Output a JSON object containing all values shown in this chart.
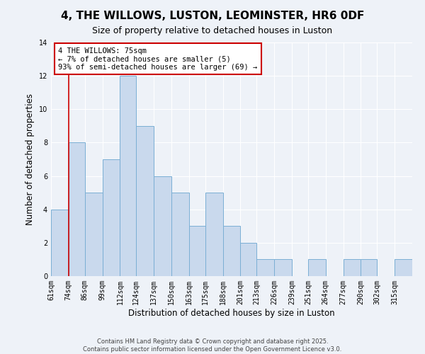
{
  "title": "4, THE WILLOWS, LUSTON, LEOMINSTER, HR6 0DF",
  "subtitle": "Size of property relative to detached houses in Luston",
  "xlabel": "Distribution of detached houses by size in Luston",
  "ylabel": "Number of detached properties",
  "bin_labels": [
    "61sqm",
    "74sqm",
    "86sqm",
    "99sqm",
    "112sqm",
    "124sqm",
    "137sqm",
    "150sqm",
    "163sqm",
    "175sqm",
    "188sqm",
    "201sqm",
    "213sqm",
    "226sqm",
    "239sqm",
    "251sqm",
    "264sqm",
    "277sqm",
    "290sqm",
    "302sqm",
    "315sqm"
  ],
  "bar_heights": [
    4,
    8,
    5,
    7,
    12,
    9,
    6,
    5,
    3,
    5,
    3,
    2,
    1,
    1,
    0,
    1,
    0,
    1,
    1,
    0,
    1
  ],
  "bin_edges": [
    61,
    74,
    86,
    99,
    112,
    124,
    137,
    150,
    163,
    175,
    188,
    201,
    213,
    226,
    239,
    251,
    264,
    277,
    290,
    302,
    315,
    328
  ],
  "bar_color": "#c9d9ed",
  "bar_edge_color": "#7aafd4",
  "vline_x": 74,
  "vline_color": "#cc0000",
  "annotation_title": "4 THE WILLOWS: 75sqm",
  "annotation_line1": "← 7% of detached houses are smaller (5)",
  "annotation_line2": "93% of semi-detached houses are larger (69) →",
  "annotation_box_color": "#ffffff",
  "annotation_box_edge_color": "#cc0000",
  "ylim": [
    0,
    14
  ],
  "yticks": [
    0,
    2,
    4,
    6,
    8,
    10,
    12,
    14
  ],
  "footer_line1": "Contains HM Land Registry data © Crown copyright and database right 2025.",
  "footer_line2": "Contains public sector information licensed under the Open Government Licence v3.0.",
  "background_color": "#eef2f8",
  "grid_color": "#ffffff",
  "title_fontsize": 11,
  "subtitle_fontsize": 9,
  "axis_label_fontsize": 8.5,
  "tick_fontsize": 7,
  "annotation_fontsize": 7.5,
  "footer_fontsize": 6
}
